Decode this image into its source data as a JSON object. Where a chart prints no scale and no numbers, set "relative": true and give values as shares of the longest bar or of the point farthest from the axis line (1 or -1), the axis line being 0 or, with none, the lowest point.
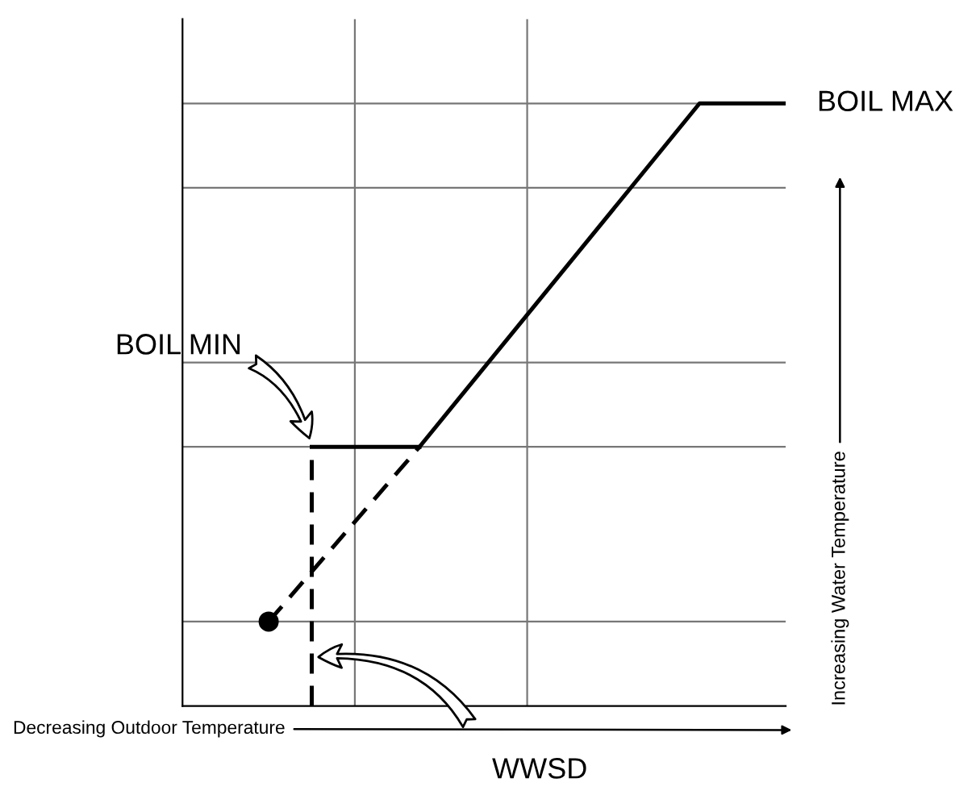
{
  "chart_data": {
    "type": "line",
    "relative": true,
    "xlabel": "Decreasing Outdoor Temperature",
    "ylabel": "Increasing Water Temperature",
    "categories": [
      null,
      null,
      null,
      null,
      null,
      null,
      null,
      null,
      null,
      null,
      null,
      null,
      null,
      null,
      null,
      null,
      null,
      null,
      null,
      null,
      null,
      null,
      null,
      null,
      null,
      null,
      null,
      null,
      null
    ],
    "grid": true,
    "series": [
      {
        "color": "#000000",
        "line_style": "solid",
        "values": [
          null,
          null,
          null,
          null,
          null,
          null,
          null,
          null,
          null,
          null,
          null,
          0.43,
          null,
          null,
          null,
          null,
          null,
          null,
          null,
          null,
          null,
          null,
          null,
          null,
          1.0,
          null,
          null,
          null,
          1.0
        ]
      },
      {
        "color": "#000000",
        "line_style": "dashed",
        "marker": "circle",
        "values": [
          null,
          null,
          null,
          null,
          0.14,
          null,
          null,
          null,
          null,
          null,
          null,
          0.43,
          null,
          null,
          null,
          null,
          null,
          null,
          null,
          null,
          null,
          null,
          null,
          null,
          null,
          null,
          null,
          null,
          null
        ]
      },
      {
        "color": "#000000",
        "line_style": "solid",
        "values": [
          null,
          null,
          null,
          null,
          null,
          null,
          0.43,
          null,
          null,
          null,
          null,
          0.43,
          null,
          null,
          null,
          null,
          null,
          null,
          null,
          null,
          null,
          null,
          null,
          null,
          null,
          null,
          null,
          null,
          null
        ]
      }
    ],
    "annotations": [
      "BOIL MAX",
      "BOIL MIN",
      "WWSD"
    ]
  }
}
